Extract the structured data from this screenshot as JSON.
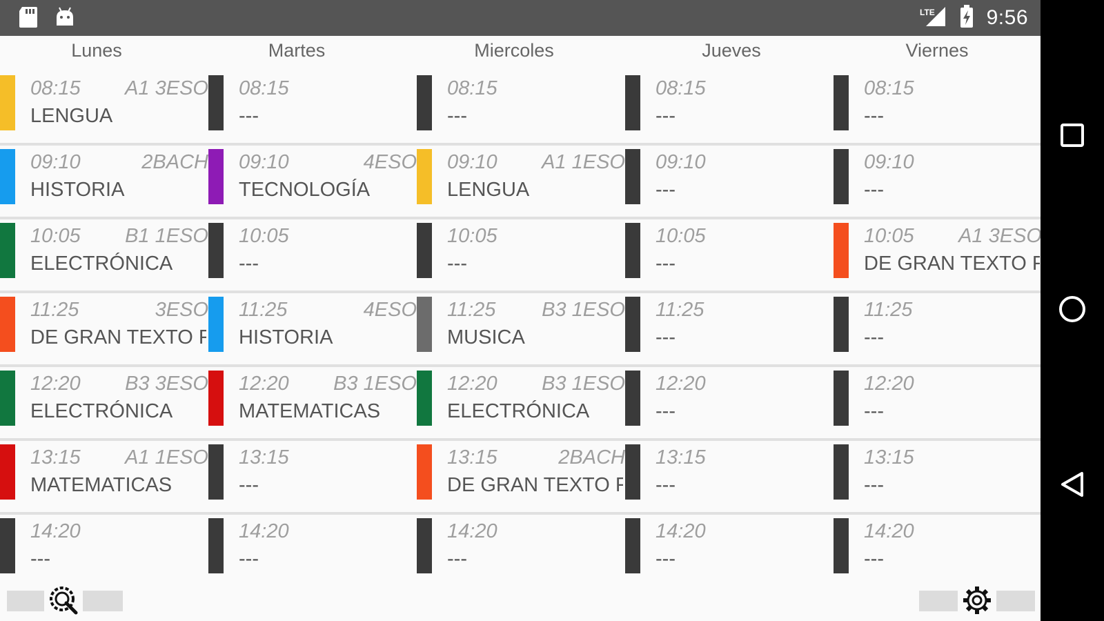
{
  "status_bar": {
    "time": "9:56",
    "network_label": "LTE",
    "icons": [
      "sd-card-icon",
      "android-icon",
      "lte-signal-icon",
      "battery-charging-icon"
    ]
  },
  "days": [
    "Lunes",
    "Martes",
    "Miercoles",
    "Jueves",
    "Viernes"
  ],
  "colors": {
    "yellow": "#F5BE28",
    "blue": "#169CEE",
    "purple": "#8E1BB5",
    "green": "#11773F",
    "orange": "#F44E1E",
    "red": "#D60F0F",
    "gray": "#6C6C6C",
    "empty": "#3A3A3A"
  },
  "rows": [
    {
      "time": "08:15",
      "cells": [
        {
          "group": "A1 3ESO",
          "subject": "LENGUA",
          "color": "#F5BE28"
        },
        {
          "group": "",
          "subject": "---",
          "color": "#3A3A3A"
        },
        {
          "group": "",
          "subject": "---",
          "color": "#3A3A3A"
        },
        {
          "group": "",
          "subject": "---",
          "color": "#3A3A3A"
        },
        {
          "group": "",
          "subject": "---",
          "color": "#3A3A3A"
        }
      ]
    },
    {
      "time": "09:10",
      "cells": [
        {
          "group": "2BACH",
          "subject": "HISTORIA",
          "color": "#169CEE"
        },
        {
          "group": "4ESO",
          "subject": "TECNOLOGÍA",
          "color": "#8E1BB5"
        },
        {
          "group": "A1 1ESO",
          "subject": "LENGUA",
          "color": "#F5BE28"
        },
        {
          "group": "",
          "subject": "---",
          "color": "#3A3A3A"
        },
        {
          "group": "",
          "subject": "---",
          "color": "#3A3A3A"
        }
      ]
    },
    {
      "time": "10:05",
      "cells": [
        {
          "group": "B1 1ESO",
          "subject": "ELECTRÓNICA",
          "color": "#11773F"
        },
        {
          "group": "",
          "subject": "---",
          "color": "#3A3A3A"
        },
        {
          "group": "",
          "subject": "---",
          "color": "#3A3A3A"
        },
        {
          "group": "",
          "subject": "---",
          "color": "#3A3A3A"
        },
        {
          "group": "A1 3ESO",
          "subject": "DE GRAN TEXTO F",
          "color": "#F44E1E"
        }
      ]
    },
    {
      "time": "11:25",
      "cells": [
        {
          "group": "3ESO",
          "subject": "DE GRAN TEXTO F",
          "color": "#F44E1E"
        },
        {
          "group": "4ESO",
          "subject": "HISTORIA",
          "color": "#169CEE"
        },
        {
          "group": "B3 1ESO",
          "subject": "MUSICA",
          "color": "#6C6C6C"
        },
        {
          "group": "",
          "subject": "---",
          "color": "#3A3A3A"
        },
        {
          "group": "",
          "subject": "---",
          "color": "#3A3A3A"
        }
      ]
    },
    {
      "time": "12:20",
      "cells": [
        {
          "group": "B3 3ESO",
          "subject": "ELECTRÓNICA",
          "color": "#11773F"
        },
        {
          "group": "B3 1ESO",
          "subject": "MATEMATICAS",
          "color": "#D60F0F"
        },
        {
          "group": "B3 1ESO",
          "subject": "ELECTRÓNICA",
          "color": "#11773F"
        },
        {
          "group": "",
          "subject": "---",
          "color": "#3A3A3A"
        },
        {
          "group": "",
          "subject": "---",
          "color": "#3A3A3A"
        }
      ]
    },
    {
      "time": "13:15",
      "cells": [
        {
          "group": "A1 1ESO",
          "subject": "MATEMATICAS",
          "color": "#D60F0F"
        },
        {
          "group": "",
          "subject": "---",
          "color": "#3A3A3A"
        },
        {
          "group": "2BACH",
          "subject": "DE GRAN TEXTO F",
          "color": "#F44E1E"
        },
        {
          "group": "",
          "subject": "---",
          "color": "#3A3A3A"
        },
        {
          "group": "",
          "subject": "---",
          "color": "#3A3A3A"
        }
      ]
    },
    {
      "time": "14:20",
      "cells": [
        {
          "group": "",
          "subject": "---",
          "color": "#3A3A3A"
        },
        {
          "group": "",
          "subject": "---",
          "color": "#3A3A3A"
        },
        {
          "group": "",
          "subject": "---",
          "color": "#3A3A3A"
        },
        {
          "group": "",
          "subject": "---",
          "color": "#3A3A3A"
        },
        {
          "group": "",
          "subject": "---",
          "color": "#3A3A3A"
        }
      ]
    }
  ],
  "bottom_bar": {
    "left_icon": "search-settings-icon",
    "right_icon": "gear-icon"
  },
  "nav_bar": {
    "icons": [
      "square-recents-icon",
      "circle-home-icon",
      "triangle-back-icon"
    ]
  }
}
